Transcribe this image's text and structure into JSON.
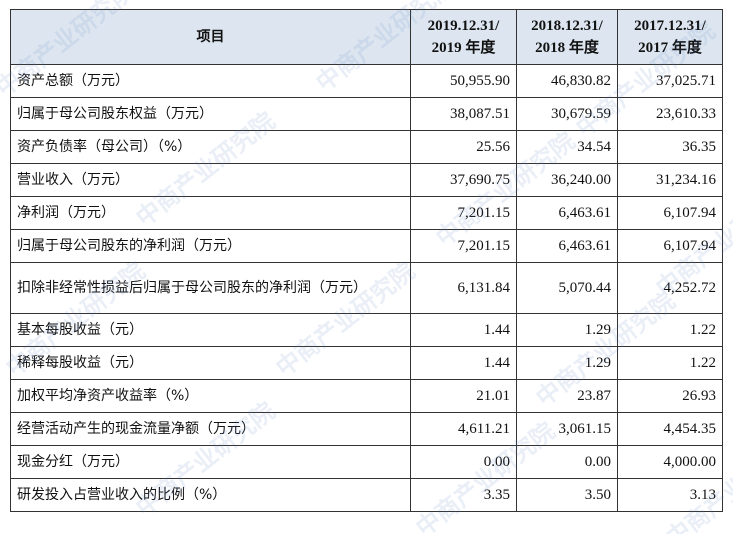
{
  "watermark": "中商产业研究院",
  "table": {
    "header": [
      "项目",
      [
        "2019.12.31/",
        "2019 年度"
      ],
      [
        "2018.12.31/",
        "2018 年度"
      ],
      [
        "2017.12.31/",
        "2017 年度"
      ]
    ],
    "rows": [
      [
        "资产总额（万元）",
        "50,955.90",
        "46,830.82",
        "37,025.71"
      ],
      [
        "归属于母公司股东权益（万元）",
        "38,087.51",
        "30,679.59",
        "23,610.33"
      ],
      [
        "资产负债率（母公司）（%）",
        "25.56",
        "34.54",
        "36.35"
      ],
      [
        "营业收入（万元）",
        "37,690.75",
        "36,240.00",
        "31,234.16"
      ],
      [
        "净利润（万元）",
        "7,201.15",
        "6,463.61",
        "6,107.94"
      ],
      [
        "归属于母公司股东的净利润（万元）",
        "7,201.15",
        "6,463.61",
        "6,107.94"
      ],
      [
        "扣除非经常性损益后归属于母公司股东的净利润（万元）",
        "6,131.84",
        "5,070.44",
        "4,252.72"
      ],
      [
        "基本每股收益（元）",
        "1.44",
        "1.29",
        "1.22"
      ],
      [
        "稀释每股收益（元）",
        "1.44",
        "1.29",
        "1.22"
      ],
      [
        "加权平均净资产收益率（%）",
        "21.01",
        "23.87",
        "26.93"
      ],
      [
        "经营活动产生的现金流量净额（万元）",
        "4,611.21",
        "3,061.15",
        "4,454.35"
      ],
      [
        "现金分红（万元）",
        "0.00",
        "0.00",
        "4,000.00"
      ],
      [
        "研发投入占营业收入的比例（%）",
        "3.35",
        "3.50",
        "3.13"
      ]
    ]
  }
}
